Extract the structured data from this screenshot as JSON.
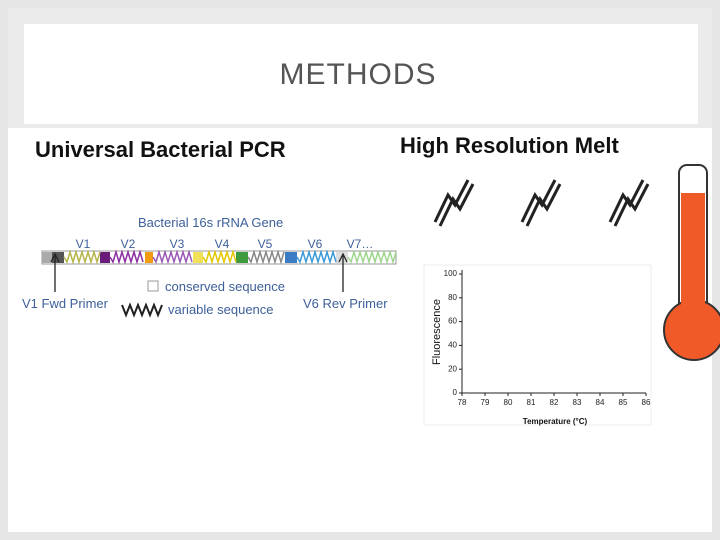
{
  "header": {
    "title": "METHODS"
  },
  "left": {
    "heading": "Universal Bacterial PCR",
    "gene_title": "Bacterial 16s rRNA Gene",
    "regions": [
      "V1",
      "V2",
      "V3",
      "V4",
      "V5",
      "V6",
      "V7…"
    ],
    "forward_primer": "V1 Fwd Primer",
    "reverse_primer": "V6 Rev Primer",
    "legend": [
      "conserved sequence",
      "variable sequence"
    ]
  },
  "right": {
    "heading": "High Resolution Melt",
    "melt_plot": {
      "type": "line",
      "x_label": "Temperature (°C)",
      "y_label": "Fluorescence",
      "xlim": [
        78,
        86
      ],
      "ylim": [
        0,
        100
      ],
      "xticks": [
        78,
        79,
        80,
        81,
        82,
        83,
        84,
        85,
        86
      ],
      "yticks": [
        0,
        20,
        40,
        60,
        80,
        100
      ]
    }
  }
}
